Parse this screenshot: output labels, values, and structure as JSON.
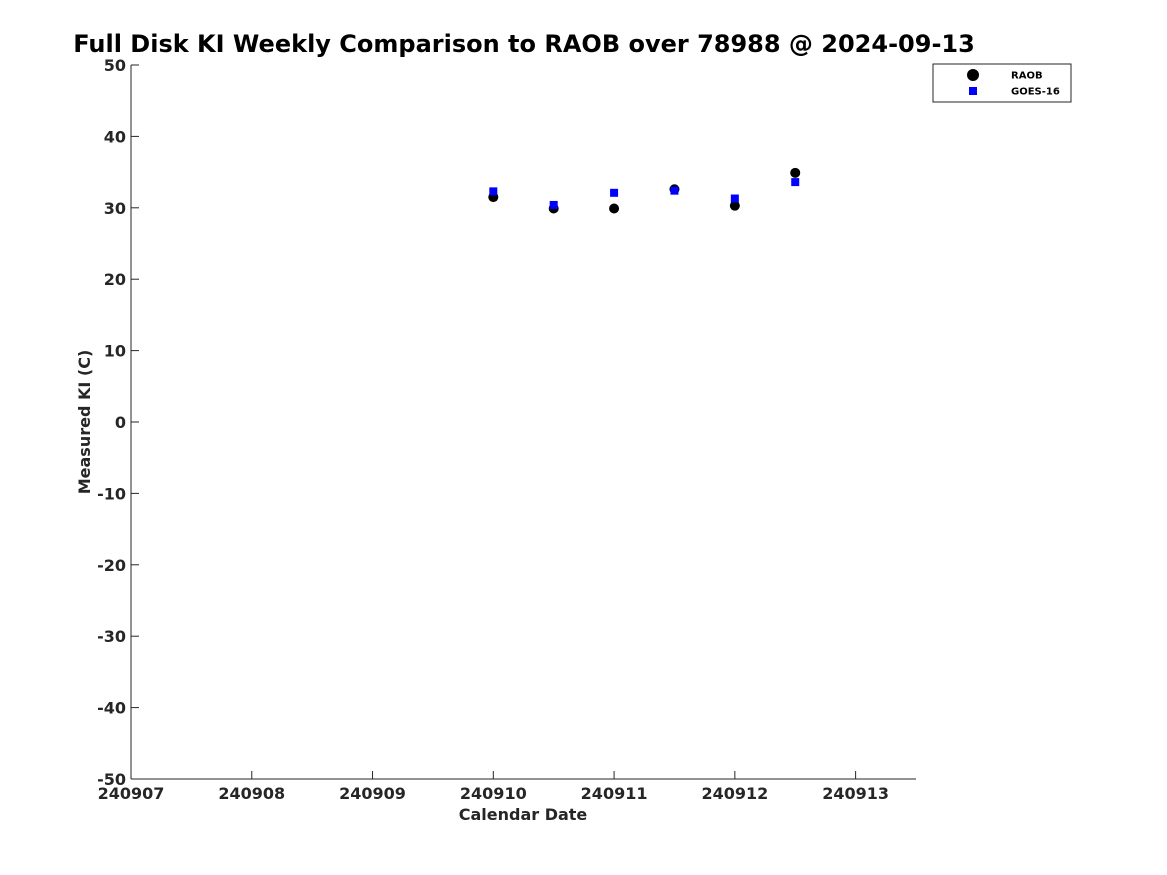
{
  "chart_data": {
    "type": "scatter",
    "title": "Full Disk KI Weekly Comparison to RAOB over 78988 @ 2024-09-13",
    "xlabel": "Calendar Date",
    "ylabel": "Measured KI (C)",
    "x_ticks": [
      240907,
      240908,
      240909,
      240910,
      240911,
      240912,
      240913
    ],
    "xlim": [
      240907,
      240913.5
    ],
    "ylim": [
      -50,
      50
    ],
    "y_ticks": [
      -50,
      -40,
      -30,
      -20,
      -10,
      0,
      10,
      20,
      30,
      40,
      50
    ],
    "grid": false,
    "legend_position": "top-right",
    "series": [
      {
        "name": "RAOB",
        "marker": "circle",
        "color": "#000000",
        "x": [
          240910.0,
          240910.5,
          240911.0,
          240911.5,
          240912.0,
          240912.5
        ],
        "y": [
          31.5,
          29.9,
          29.9,
          32.6,
          30.3,
          34.9
        ]
      },
      {
        "name": "GOES-16",
        "marker": "square",
        "color": "#0000ff",
        "x": [
          240910.0,
          240910.5,
          240911.0,
          240911.5,
          240912.0,
          240912.5
        ],
        "y": [
          32.3,
          30.4,
          32.1,
          32.4,
          31.3,
          33.6
        ]
      }
    ]
  }
}
